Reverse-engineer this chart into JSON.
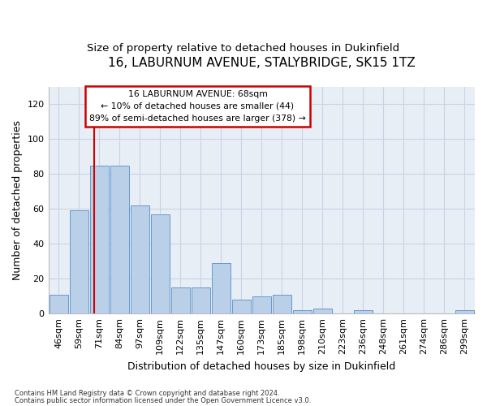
{
  "title1": "16, LABURNUM AVENUE, STALYBRIDGE, SK15 1TZ",
  "title2": "Size of property relative to detached houses in Dukinfield",
  "xlabel": "Distribution of detached houses by size in Dukinfield",
  "ylabel": "Number of detached properties",
  "categories": [
    "46sqm",
    "59sqm",
    "71sqm",
    "84sqm",
    "97sqm",
    "109sqm",
    "122sqm",
    "135sqm",
    "147sqm",
    "160sqm",
    "173sqm",
    "185sqm",
    "198sqm",
    "210sqm",
    "223sqm",
    "236sqm",
    "248sqm",
    "261sqm",
    "274sqm",
    "286sqm",
    "299sqm"
  ],
  "values": [
    11,
    59,
    85,
    85,
    62,
    57,
    15,
    15,
    29,
    8,
    10,
    11,
    2,
    3,
    0,
    2,
    0,
    0,
    0,
    0,
    2
  ],
  "bar_color": "#bad0e8",
  "bar_edge_color": "#6699cc",
  "ylim": [
    0,
    130
  ],
  "yticks": [
    0,
    20,
    40,
    60,
    80,
    100,
    120
  ],
  "grid_color": "#c8d4e4",
  "bg_color": "#e8eef6",
  "footer1": "Contains HM Land Registry data © Crown copyright and database right 2024.",
  "footer2": "Contains public sector information licensed under the Open Government Licence v3.0.",
  "title1_fontsize": 11,
  "title2_fontsize": 9.5,
  "xlabel_fontsize": 9,
  "ylabel_fontsize": 9,
  "tick_fontsize": 8,
  "red_line_color": "#cc0000",
  "box_edge_color": "#cc0000",
  "annotation_line1": "16 LABURNUM AVENUE: 68sqm",
  "annotation_line2": "← 10% of detached houses are smaller (44)",
  "annotation_line3": "89% of semi-detached houses are larger (378) →"
}
